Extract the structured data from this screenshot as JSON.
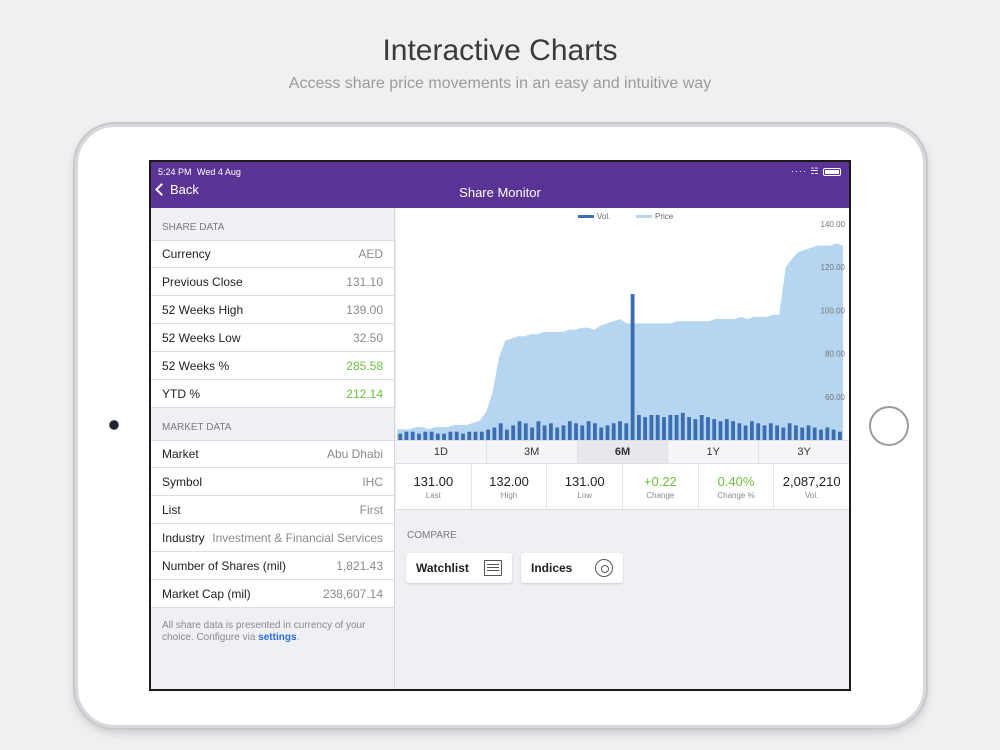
{
  "promo": {
    "headline": "Interactive Charts",
    "subline": "Access share price movements in an easy and intuitive way"
  },
  "status_bar": {
    "time": "5:24 PM",
    "date": "Wed 4 Aug"
  },
  "nav": {
    "back_label": "Back",
    "title": "Share Monitor"
  },
  "share_data": {
    "header": "SHARE DATA",
    "rows": [
      {
        "label": "Currency",
        "value": "AED"
      },
      {
        "label": "Previous Close",
        "value": "131.10"
      },
      {
        "label": "52 Weeks High",
        "value": "139.00"
      },
      {
        "label": "52 Weeks Low",
        "value": "32.50"
      },
      {
        "label": "52 Weeks %",
        "value": "285.58"
      },
      {
        "label": "YTD %",
        "value": "212.14"
      }
    ]
  },
  "market_data": {
    "header": "MARKET DATA",
    "rows": [
      {
        "label": "Market",
        "value": "Abu Dhabi"
      },
      {
        "label": "Symbol",
        "value": "IHC"
      },
      {
        "label": "List",
        "value": "First"
      },
      {
        "label": "Industry",
        "value": "Investment & Financial Services"
      },
      {
        "label": "Number of Shares (mil)",
        "value": "1,821.43"
      },
      {
        "label": "Market Cap (mil)",
        "value": "238,607.14"
      }
    ]
  },
  "footnote": {
    "text": "All share data is presented in currency of your choice. Configure via ",
    "link": "settings",
    "end": "."
  },
  "colors": {
    "nav": "#5a3494",
    "positive": "#6abf3a",
    "price_fill": "#b5d5f0",
    "volume": "#3b6db0",
    "link": "#2a6fd8"
  },
  "chart_data": {
    "type": "area",
    "legend": [
      "Vol.",
      "Price"
    ],
    "y_ticks": [
      "140.00",
      "120.00",
      "100.00",
      "80.00",
      "60.00"
    ],
    "ylim": [
      40,
      140
    ],
    "series": [
      {
        "name": "Price",
        "values": [
          45,
          45,
          45,
          46,
          46,
          45,
          46,
          46,
          46,
          47,
          47,
          47,
          48,
          49,
          53,
          62,
          78,
          86,
          87,
          88,
          88,
          89,
          89,
          90,
          90,
          90,
          90,
          91,
          91,
          92,
          92,
          91,
          93,
          94,
          95,
          96,
          94,
          94,
          94,
          94,
          94,
          94,
          94,
          94,
          95,
          95,
          95,
          95,
          95,
          95,
          96,
          96,
          96,
          96,
          97,
          96,
          97,
          97,
          97,
          98,
          98,
          120,
          124,
          127,
          128,
          129,
          130,
          130,
          130,
          131,
          130
        ]
      },
      {
        "name": "Vol.",
        "values": [
          3,
          4,
          4,
          3,
          4,
          4,
          3,
          3,
          4,
          4,
          3,
          4,
          4,
          4,
          5,
          6,
          8,
          5,
          7,
          9,
          8,
          6,
          9,
          7,
          8,
          6,
          7,
          9,
          8,
          7,
          9,
          8,
          6,
          7,
          8,
          9,
          8,
          70,
          12,
          11,
          12,
          12,
          11,
          12,
          12,
          13,
          11,
          10,
          12,
          11,
          10,
          9,
          10,
          9,
          8,
          7,
          9,
          8,
          7,
          8,
          7,
          6,
          8,
          7,
          6,
          7,
          6,
          5,
          6,
          5,
          4
        ]
      }
    ]
  },
  "range_tabs": [
    "1D",
    "3M",
    "6M",
    "1Y",
    "3Y"
  ],
  "active_tab": "6M",
  "stats": [
    {
      "value": "131.00",
      "label": "Last"
    },
    {
      "value": "132.00",
      "label": "High"
    },
    {
      "value": "131.00",
      "label": "Low"
    },
    {
      "value": "+0.22",
      "label": "Change"
    },
    {
      "value": "0.40%",
      "label": "Change %"
    },
    {
      "value": "2,087,210",
      "label": "Vol."
    }
  ],
  "compare": {
    "header": "COMPARE",
    "watchlist_label": "Watchlist",
    "indices_label": "Indices"
  }
}
